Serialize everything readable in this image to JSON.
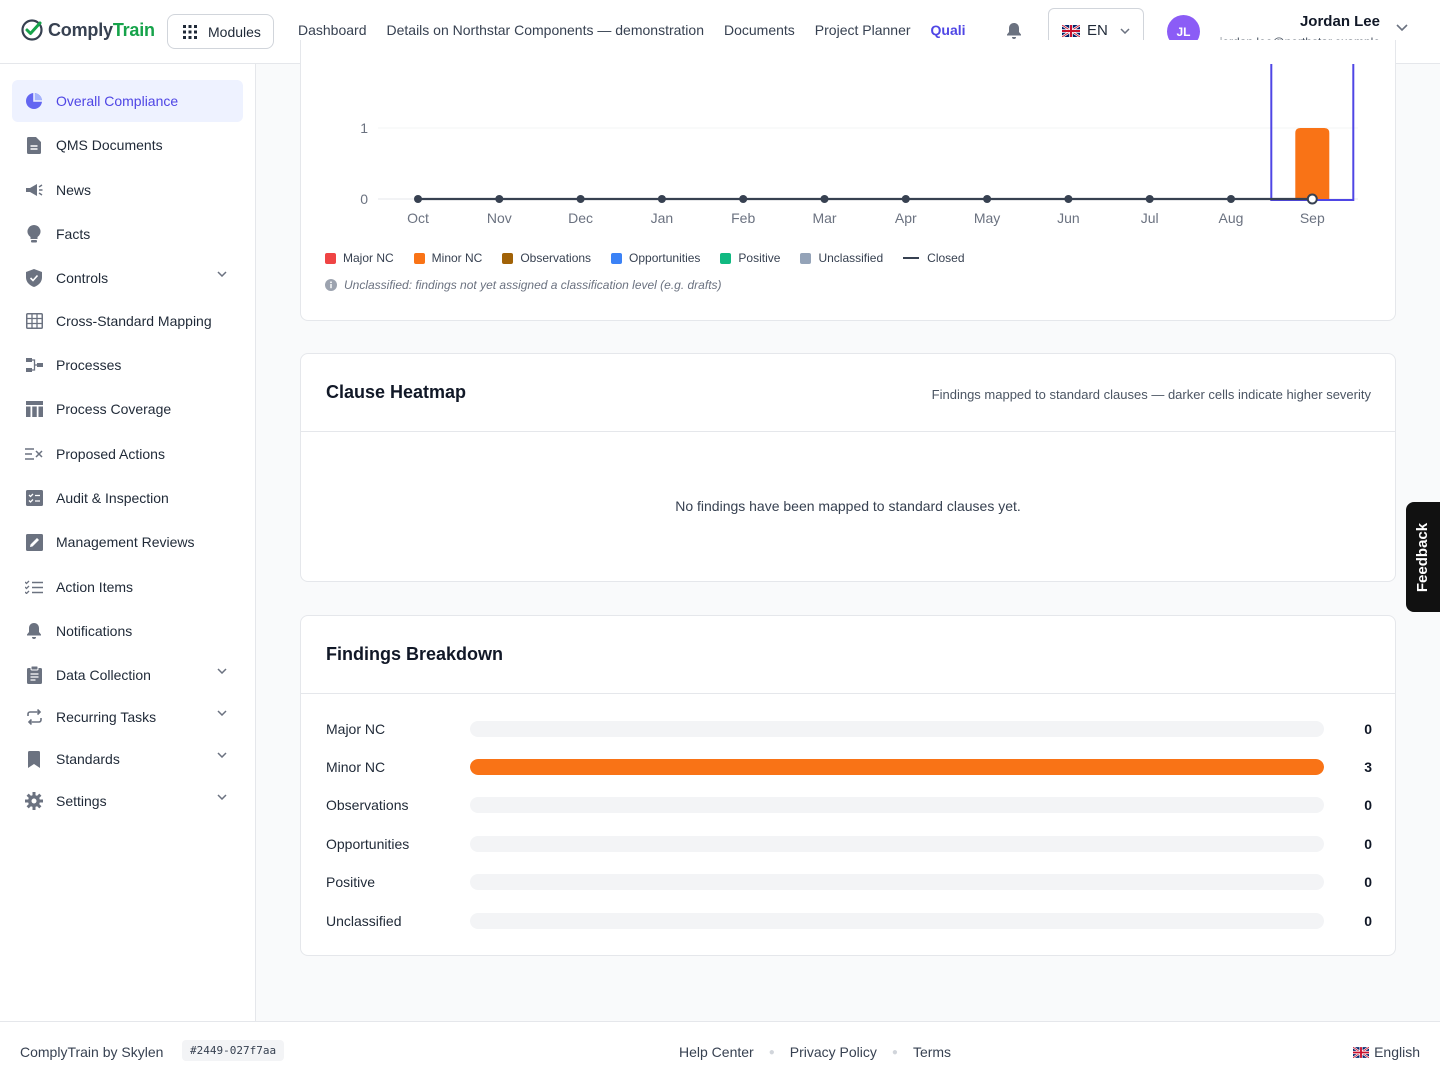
{
  "header": {
    "logo_part1": "Comply",
    "logo_part2": "Train",
    "modules_label": "Modules",
    "nav": [
      "Dashboard",
      "Details on Northstar Components — demonstration",
      "Documents",
      "Project Planner"
    ],
    "nav_active": "Quali",
    "language": "EN",
    "user": {
      "initials": "JL",
      "name": "Jordan Lee",
      "email": "jordan.lee@northstar.example"
    }
  },
  "sidebar": {
    "items": [
      {
        "label": "Overall Compliance",
        "icon": "pie-chart-icon",
        "active": true
      },
      {
        "label": "QMS Documents",
        "icon": "document-icon"
      },
      {
        "label": "News",
        "icon": "megaphone-icon"
      },
      {
        "label": "Facts",
        "icon": "lightbulb-icon"
      },
      {
        "label": "Controls",
        "icon": "shield-icon",
        "expandable": true
      },
      {
        "label": "Cross-Standard Mapping",
        "icon": "table-grid-icon"
      },
      {
        "label": "Processes",
        "icon": "process-flow-icon"
      },
      {
        "label": "Process Coverage",
        "icon": "columns-icon"
      },
      {
        "label": "Proposed Actions",
        "icon": "list-x-icon"
      },
      {
        "label": "Audit & Inspection",
        "icon": "checklist-icon"
      },
      {
        "label": "Management Reviews",
        "icon": "pen-square-icon"
      },
      {
        "label": "Action Items",
        "icon": "list-check-icon"
      },
      {
        "label": "Notifications",
        "icon": "bell-icon"
      },
      {
        "label": "Data Collection",
        "icon": "clipboard-icon",
        "expandable": true
      },
      {
        "label": "Recurring Tasks",
        "icon": "repeat-icon",
        "expandable": true
      },
      {
        "label": "Standards",
        "icon": "bookmark-icon",
        "expandable": true
      },
      {
        "label": "Settings",
        "icon": "gear-icon",
        "expandable": true
      }
    ]
  },
  "chart_data": {
    "type": "bar",
    "categories": [
      "Oct",
      "Nov",
      "Dec",
      "Jan",
      "Feb",
      "Mar",
      "Apr",
      "May",
      "Jun",
      "Jul",
      "Aug",
      "Sep"
    ],
    "y_ticks": [
      "0",
      "1"
    ],
    "ylim": [
      0,
      1
    ],
    "series": [
      {
        "name": "Major NC",
        "color": "#ef4444",
        "values": [
          0,
          0,
          0,
          0,
          0,
          0,
          0,
          0,
          0,
          0,
          0,
          0
        ]
      },
      {
        "name": "Minor NC",
        "color": "#f97316",
        "values": [
          0,
          0,
          0,
          0,
          0,
          0,
          0,
          0,
          0,
          0,
          0,
          1
        ]
      },
      {
        "name": "Observations",
        "color": "#a16207",
        "values": [
          0,
          0,
          0,
          0,
          0,
          0,
          0,
          0,
          0,
          0,
          0,
          0
        ]
      },
      {
        "name": "Opportunities",
        "color": "#3b82f6",
        "values": [
          0,
          0,
          0,
          0,
          0,
          0,
          0,
          0,
          0,
          0,
          0,
          0
        ]
      },
      {
        "name": "Positive",
        "color": "#10b981",
        "values": [
          0,
          0,
          0,
          0,
          0,
          0,
          0,
          0,
          0,
          0,
          0,
          0
        ]
      },
      {
        "name": "Unclassified",
        "color": "#94a3b8",
        "values": [
          0,
          0,
          0,
          0,
          0,
          0,
          0,
          0,
          0,
          0,
          0,
          0
        ]
      }
    ],
    "line": {
      "name": "Closed",
      "color": "#374151",
      "values": [
        0,
        0,
        0,
        0,
        0,
        0,
        0,
        0,
        0,
        0,
        0,
        0
      ]
    },
    "highlight_category": "Sep",
    "grid": true,
    "legend_position": "bottom-left"
  },
  "chart_note": "Unclassified: findings not yet assigned a classification level (e.g. drafts)",
  "heatmap": {
    "title": "Clause Heatmap",
    "subtitle": "Findings mapped to standard clauses — darker cells indicate higher severity",
    "empty": "No findings have been mapped to standard clauses yet."
  },
  "breakdown": {
    "title": "Findings Breakdown",
    "max": 3,
    "rows": [
      {
        "label": "Major NC",
        "value": 0,
        "color": "#ef4444"
      },
      {
        "label": "Minor NC",
        "value": 3,
        "color": "#f97316"
      },
      {
        "label": "Observations",
        "value": 0,
        "color": "#a16207"
      },
      {
        "label": "Opportunities",
        "value": 0,
        "color": "#3b82f6"
      },
      {
        "label": "Positive",
        "value": 0,
        "color": "#10b981"
      },
      {
        "label": "Unclassified",
        "value": 0,
        "color": "#94a3b8"
      }
    ]
  },
  "feedback_label": "Feedback",
  "footer": {
    "brand": "ComplyTrain by Skylen",
    "version": "#2449-027f7aa",
    "links": [
      "Help Center",
      "Privacy Policy",
      "Terms"
    ],
    "language": "English"
  }
}
